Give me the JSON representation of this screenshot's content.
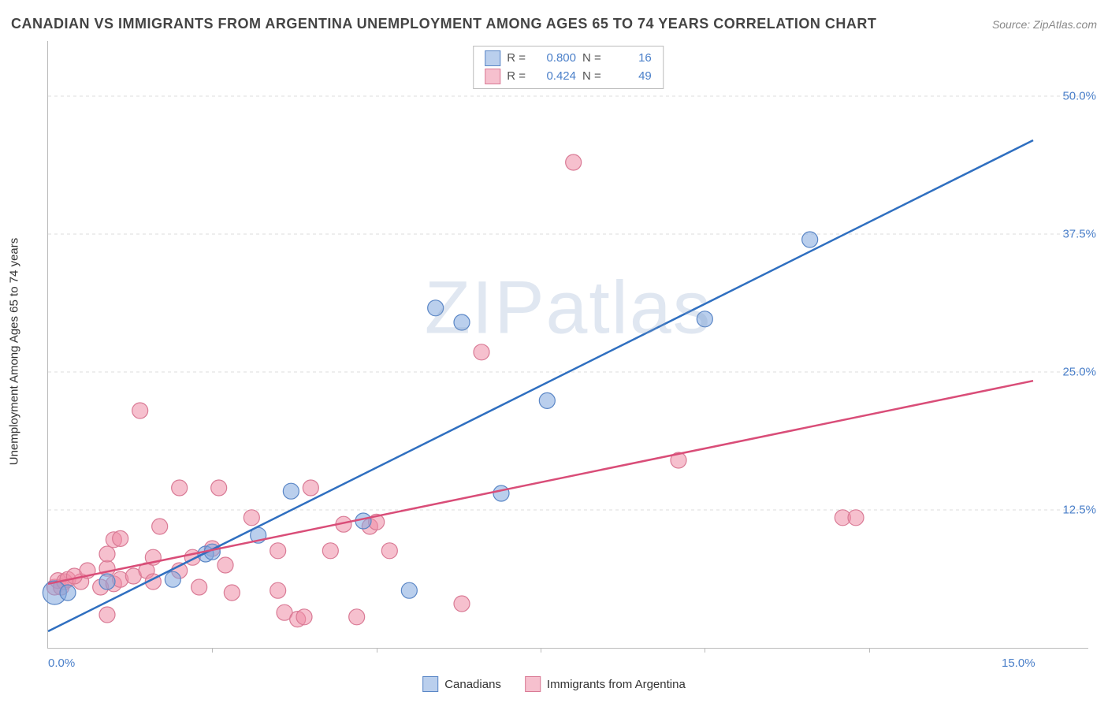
{
  "title": "CANADIAN VS IMMIGRANTS FROM ARGENTINA UNEMPLOYMENT AMONG AGES 65 TO 74 YEARS CORRELATION CHART",
  "source": "Source: ZipAtlas.com",
  "watermark": "ZIPatlas",
  "y_axis_label": "Unemployment Among Ages 65 to 74 years",
  "chart": {
    "type": "scatter",
    "background_color": "#ffffff",
    "grid_color": "#dddddd",
    "x_domain": [
      0,
      15
    ],
    "y_domain": [
      0,
      55
    ],
    "x_ticks": [
      0,
      15
    ],
    "x_tick_labels": [
      "0.0%",
      "15.0%"
    ],
    "x_minor_ticks": [
      2.5,
      5,
      7.5,
      10,
      12.5
    ],
    "y_ticks": [
      12.5,
      25,
      37.5,
      50
    ],
    "y_tick_labels": [
      "12.5%",
      "25.0%",
      "37.5%",
      "50.0%"
    ],
    "label_color": "#4a7fc9",
    "label_fontsize": 15,
    "title_fontsize": 18,
    "series": [
      {
        "id": "canadians",
        "label": "Canadians",
        "fill_color": "rgba(130,168,222,0.55)",
        "stroke_color": "#5a86c6",
        "line_color": "#2f6fc0",
        "line_width": 2.5,
        "marker_radius": 10,
        "R": "0.800",
        "N": "16",
        "trend": {
          "x1": 0,
          "y1": 1.5,
          "x2": 15,
          "y2": 46
        },
        "points": [
          {
            "x": 0.1,
            "y": 5.0,
            "r": 15
          },
          {
            "x": 0.3,
            "y": 5.0,
            "r": 10
          },
          {
            "x": 0.9,
            "y": 6.0,
            "r": 10
          },
          {
            "x": 1.9,
            "y": 6.2,
            "r": 10
          },
          {
            "x": 2.4,
            "y": 8.5,
            "r": 10
          },
          {
            "x": 2.5,
            "y": 8.7,
            "r": 10
          },
          {
            "x": 3.2,
            "y": 10.2,
            "r": 10
          },
          {
            "x": 3.7,
            "y": 14.2,
            "r": 10
          },
          {
            "x": 4.8,
            "y": 11.5,
            "r": 10
          },
          {
            "x": 5.5,
            "y": 5.2,
            "r": 10
          },
          {
            "x": 6.9,
            "y": 14.0,
            "r": 10
          },
          {
            "x": 5.9,
            "y": 30.8,
            "r": 10
          },
          {
            "x": 6.3,
            "y": 29.5,
            "r": 10
          },
          {
            "x": 7.6,
            "y": 22.4,
            "r": 10
          },
          {
            "x": 10.0,
            "y": 29.8,
            "r": 10
          },
          {
            "x": 11.6,
            "y": 37.0,
            "r": 10
          }
        ]
      },
      {
        "id": "argentina",
        "label": "Immigrants from Argentina",
        "fill_color": "rgba(238,140,165,0.55)",
        "stroke_color": "#d97a95",
        "line_color": "#d94d78",
        "line_width": 2.5,
        "marker_radius": 10,
        "R": "0.424",
        "N": "49",
        "trend": {
          "x1": 0,
          "y1": 5.8,
          "x2": 15,
          "y2": 24.2
        },
        "points": [
          {
            "x": 0.1,
            "y": 5.5
          },
          {
            "x": 0.15,
            "y": 6.1
          },
          {
            "x": 0.2,
            "y": 5.5
          },
          {
            "x": 0.25,
            "y": 6.0
          },
          {
            "x": 0.3,
            "y": 6.2
          },
          {
            "x": 0.5,
            "y": 6.0
          },
          {
            "x": 0.4,
            "y": 6.5
          },
          {
            "x": 0.6,
            "y": 7.0
          },
          {
            "x": 0.8,
            "y": 5.5
          },
          {
            "x": 0.9,
            "y": 7.2
          },
          {
            "x": 0.9,
            "y": 8.5
          },
          {
            "x": 1.0,
            "y": 5.8
          },
          {
            "x": 1.1,
            "y": 6.2
          },
          {
            "x": 0.9,
            "y": 3.0
          },
          {
            "x": 1.0,
            "y": 9.8
          },
          {
            "x": 1.1,
            "y": 9.9
          },
          {
            "x": 1.3,
            "y": 6.5
          },
          {
            "x": 1.4,
            "y": 21.5
          },
          {
            "x": 1.5,
            "y": 7.0
          },
          {
            "x": 1.6,
            "y": 6.0
          },
          {
            "x": 1.6,
            "y": 8.2
          },
          {
            "x": 1.7,
            "y": 11.0
          },
          {
            "x": 2.0,
            "y": 7.0
          },
          {
            "x": 2.0,
            "y": 14.5
          },
          {
            "x": 2.2,
            "y": 8.2
          },
          {
            "x": 2.3,
            "y": 5.5
          },
          {
            "x": 2.6,
            "y": 14.5
          },
          {
            "x": 2.5,
            "y": 9.0
          },
          {
            "x": 2.7,
            "y": 7.5
          },
          {
            "x": 2.8,
            "y": 5.0
          },
          {
            "x": 3.1,
            "y": 11.8
          },
          {
            "x": 3.5,
            "y": 8.8
          },
          {
            "x": 3.5,
            "y": 5.2
          },
          {
            "x": 3.6,
            "y": 3.2
          },
          {
            "x": 3.8,
            "y": 2.6
          },
          {
            "x": 3.9,
            "y": 2.8
          },
          {
            "x": 4.0,
            "y": 14.5
          },
          {
            "x": 4.3,
            "y": 8.8
          },
          {
            "x": 4.5,
            "y": 11.2
          },
          {
            "x": 4.7,
            "y": 2.8
          },
          {
            "x": 4.9,
            "y": 11.0
          },
          {
            "x": 5.0,
            "y": 11.4
          },
          {
            "x": 5.2,
            "y": 8.8
          },
          {
            "x": 6.3,
            "y": 4.0
          },
          {
            "x": 6.6,
            "y": 26.8
          },
          {
            "x": 8.0,
            "y": 44.0
          },
          {
            "x": 9.6,
            "y": 17.0
          },
          {
            "x": 12.1,
            "y": 11.8
          },
          {
            "x": 12.3,
            "y": 11.8
          }
        ]
      }
    ]
  },
  "stats_box_labels": {
    "R": "R =",
    "N": "N ="
  },
  "legend_labels": [
    "Canadians",
    "Immigrants from Argentina"
  ]
}
